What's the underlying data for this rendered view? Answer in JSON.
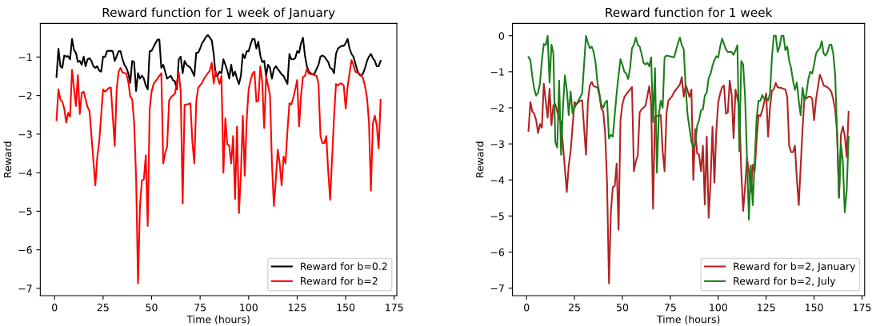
{
  "chart_data": [
    {
      "type": "line",
      "title": "Reward function for 1 week of January",
      "xlabel": "Time (hours)",
      "ylabel": "Reward",
      "xlim": [
        -7.35,
        176.35
      ],
      "ylim": [
        -7.19,
        -0.13
      ],
      "xticks": [
        0,
        25,
        50,
        75,
        100,
        125,
        150,
        175
      ],
      "yticks": [
        -7,
        -6,
        -5,
        -4,
        -3,
        -2,
        -1
      ],
      "legend": "bottom right",
      "grid": false,
      "series": [
        {
          "name": "Reward for b=0.2",
          "color": "#000000",
          "x": [
            1,
            2,
            3,
            4,
            5,
            6,
            7,
            8,
            9,
            10,
            11,
            12,
            13,
            14,
            15,
            16,
            17,
            18,
            19,
            20,
            21,
            22,
            23,
            24,
            25,
            26,
            27,
            28,
            29,
            30,
            31,
            32,
            33,
            34,
            35,
            36,
            37,
            38,
            39,
            40,
            41,
            42,
            43,
            44,
            45,
            46,
            47,
            48,
            49,
            50,
            51,
            52,
            53,
            54,
            55,
            56,
            57,
            58,
            59,
            60,
            61,
            62,
            63,
            64,
            65,
            66,
            67,
            68,
            69,
            70,
            71,
            72,
            73,
            74,
            75,
            76,
            77,
            78,
            79,
            80,
            81,
            82,
            83,
            84,
            85,
            86,
            87,
            88,
            89,
            90,
            91,
            92,
            93,
            94,
            95,
            96,
            97,
            98,
            99,
            100,
            101,
            102,
            103,
            104,
            105,
            106,
            107,
            108,
            109,
            110,
            111,
            112,
            113,
            114,
            115,
            116,
            117,
            118,
            119,
            120,
            121,
            122,
            123,
            124,
            125,
            126,
            127,
            128,
            129,
            130,
            131,
            132,
            133,
            134,
            135,
            136,
            137,
            138,
            139,
            140,
            141,
            142,
            143,
            144,
            145,
            146,
            147,
            148,
            149,
            150,
            151,
            152,
            153,
            154,
            155,
            156,
            157,
            158,
            159,
            160,
            161,
            162,
            163,
            164,
            165,
            166,
            167,
            168
          ],
          "values": [
            -1.52,
            -0.78,
            -1.24,
            -1.28,
            -0.96,
            -0.99,
            -0.98,
            -1.06,
            -0.53,
            -0.82,
            -0.89,
            -1.13,
            -1.1,
            -1.2,
            -0.99,
            -1.24,
            -1.06,
            -1.03,
            -1.1,
            -1.24,
            -1.28,
            -1.24,
            -1.35,
            -1.38,
            -0.99,
            -1.0,
            -0.85,
            -0.84,
            -0.84,
            -0.85,
            -1.1,
            -0.98,
            -0.85,
            -0.85,
            -1.06,
            -1.2,
            -1.28,
            -1.42,
            -1.67,
            -1.1,
            -1.13,
            -1.88,
            -1.42,
            -1.56,
            -1.48,
            -1.56,
            -1.74,
            -1.84,
            -0.85,
            -0.84,
            -0.74,
            -0.64,
            -0.55,
            -0.55,
            -1.28,
            -1.2,
            -1.38,
            -1.56,
            -1.52,
            -1.49,
            -1.6,
            -1.63,
            -1.84,
            -1.06,
            -0.99,
            -1.42,
            -1.1,
            -1.2,
            -1.24,
            -1.28,
            -1.38,
            -1.49,
            -0.89,
            -0.89,
            -0.78,
            -0.64,
            -0.57,
            -0.48,
            -0.43,
            -0.5,
            -0.57,
            -0.92,
            -1.49,
            -1.49,
            -1.38,
            -1.42,
            -1.06,
            -1.2,
            -1.35,
            -1.56,
            -1.2,
            -1.49,
            -1.38,
            -1.56,
            -1.7,
            -1.49,
            -0.92,
            -1.03,
            -0.85,
            -0.85,
            -0.67,
            -0.53,
            -0.53,
            -0.78,
            -0.6,
            -0.96,
            -1.13,
            -1.1,
            -1.49,
            -1.2,
            -1.28,
            -1.56,
            -1.31,
            -1.24,
            -1.31,
            -1.38,
            -1.45,
            -1.49,
            -1.6,
            -1.7,
            -0.92,
            -1.06,
            -1.06,
            -1.03,
            -0.85,
            -0.89,
            -0.64,
            -0.5,
            -0.96,
            -1.24,
            -1.38,
            -1.42,
            -1.45,
            -1.42,
            -1.31,
            -1.2,
            -0.99,
            -0.96,
            -0.99,
            -1.06,
            -1.13,
            -1.28,
            -1.31,
            -1.42,
            -0.92,
            -0.78,
            -0.74,
            -0.71,
            -0.71,
            -0.64,
            -0.53,
            -0.78,
            -0.92,
            -0.99,
            -1.17,
            -1.35,
            -1.45,
            -1.49,
            -1.42,
            -1.28,
            -1.1,
            -0.99,
            -0.92,
            -1.03,
            -1.1,
            -1.24,
            -1.24,
            -1.1
          ]
        },
        {
          "name": "Reward for b=2",
          "color": "#ff0000",
          "x": [
            1,
            2,
            3,
            4,
            5,
            6,
            7,
            8,
            9,
            11,
            12,
            13,
            14,
            15,
            17,
            18,
            21,
            22,
            23,
            25,
            26,
            28,
            29,
            31,
            32,
            33,
            34,
            35,
            37,
            38,
            39,
            40,
            41,
            42,
            43,
            44,
            45,
            46,
            47,
            48,
            49,
            50,
            51,
            53,
            55,
            56,
            57,
            58,
            59,
            60,
            62,
            64,
            65,
            66,
            67,
            69,
            70,
            71,
            72,
            73,
            74,
            76,
            77,
            78,
            79,
            80,
            81,
            82,
            83,
            84,
            85,
            86,
            87,
            88,
            89,
            90,
            91,
            92,
            93,
            94,
            95,
            96,
            97,
            98,
            99,
            100,
            101,
            102,
            103,
            104,
            105,
            106,
            107,
            108,
            109,
            110,
            111,
            112,
            113,
            114,
            115,
            116,
            117,
            118,
            119,
            120,
            121,
            122,
            123,
            124,
            125,
            126,
            127,
            128,
            129,
            130,
            131,
            133,
            135,
            136,
            137,
            138,
            139,
            140,
            141,
            142,
            143,
            144,
            145,
            146,
            147,
            148,
            149,
            150,
            151,
            152,
            153,
            154,
            155,
            157,
            158,
            159,
            160,
            161,
            162,
            163,
            164,
            165,
            166,
            167,
            168
          ],
          "values": [
            -2.64,
            -1.84,
            -2.1,
            -2.16,
            -2.34,
            -2.7,
            -2.45,
            -2.55,
            -1.33,
            -2.27,
            -1.47,
            -2.48,
            -1.93,
            -1.9,
            -2.3,
            -2.4,
            -4.33,
            -3.6,
            -3.2,
            -1.84,
            -1.9,
            -1.8,
            -1.79,
            -3.3,
            -1.84,
            -1.38,
            -1.28,
            -1.4,
            -1.43,
            -1.65,
            -2.02,
            -2.1,
            -2.7,
            -4.1,
            -6.87,
            -4.87,
            -4.2,
            -4.17,
            -3.55,
            -5.38,
            -2.34,
            -1.9,
            -1.7,
            -1.56,
            -1.42,
            -3.76,
            -3.48,
            -3.33,
            -2.13,
            -2.04,
            -1.95,
            -1.4,
            -1.9,
            -4.8,
            -2.24,
            -2.22,
            -2.2,
            -3.2,
            -3.76,
            -2.16,
            -1.8,
            -1.67,
            -1.56,
            -1.49,
            -1.42,
            -1.35,
            -1.15,
            -1.69,
            -1.36,
            -1.52,
            -1.7,
            -1.49,
            -4.0,
            -2.59,
            -3.26,
            -3.3,
            -3.76,
            -3.05,
            -4.68,
            -2.8,
            -5.05,
            -4.04,
            -2.52,
            -4.08,
            -2.62,
            -1.84,
            -1.6,
            -1.43,
            -1.38,
            -2.16,
            -2.13,
            -1.24,
            -1.65,
            -2.84,
            -1.49,
            -1.74,
            -1.99,
            -3.76,
            -4.86,
            -4.18,
            -3.4,
            -3.76,
            -4.33,
            -3.58,
            -3.76,
            -2.91,
            -2.2,
            -2.23,
            -2.06,
            -1.84,
            -1.6,
            -2.8,
            -1.99,
            -1.52,
            -1.49,
            -1.31,
            -1.43,
            -1.45,
            -1.49,
            -1.7,
            -3.05,
            -3.23,
            -3.23,
            -3.05,
            -3.97,
            -4.7,
            -3.62,
            -2.55,
            -1.7,
            -1.74,
            -1.69,
            -1.69,
            -1.74,
            -2.34,
            -1.77,
            -1.42,
            -1.08,
            -1.21,
            -1.38,
            -1.43,
            -1.48,
            -1.56,
            -1.77,
            -2.06,
            -2.7,
            -4.47,
            -2.73,
            -2.52,
            -2.77,
            -3.37,
            -2.11
          ]
        }
      ]
    },
    {
      "type": "line",
      "title": "Reward function for 1 week",
      "xlabel": "Time (hours)",
      "ylabel": "Reward",
      "xlim": [
        -7.35,
        176.35
      ],
      "ylim": [
        -7.21,
        0.34
      ],
      "xticks": [
        0,
        25,
        50,
        75,
        100,
        125,
        150,
        175
      ],
      "yticks": [
        -7,
        -6,
        -5,
        -4,
        -3,
        -2,
        -1,
        0
      ],
      "legend": "bottom right",
      "grid": false,
      "series": [
        {
          "name": "Reward for b=2, January",
          "color": "#b22222",
          "x": [
            1,
            2,
            3,
            4,
            5,
            6,
            7,
            8,
            9,
            11,
            12,
            13,
            14,
            15,
            17,
            18,
            21,
            22,
            23,
            25,
            26,
            28,
            29,
            31,
            32,
            33,
            34,
            35,
            37,
            38,
            39,
            40,
            41,
            42,
            43,
            44,
            45,
            46,
            47,
            48,
            49,
            50,
            51,
            53,
            55,
            56,
            57,
            58,
            59,
            60,
            62,
            64,
            65,
            66,
            67,
            69,
            70,
            71,
            72,
            73,
            74,
            76,
            77,
            78,
            79,
            80,
            81,
            82,
            83,
            84,
            85,
            86,
            87,
            88,
            89,
            90,
            91,
            92,
            93,
            94,
            95,
            96,
            97,
            98,
            99,
            100,
            101,
            102,
            103,
            104,
            105,
            106,
            107,
            108,
            109,
            110,
            111,
            112,
            113,
            114,
            115,
            116,
            117,
            118,
            119,
            120,
            121,
            122,
            123,
            124,
            125,
            126,
            127,
            128,
            129,
            130,
            131,
            133,
            135,
            136,
            137,
            138,
            139,
            140,
            141,
            142,
            143,
            144,
            145,
            146,
            147,
            148,
            149,
            150,
            151,
            152,
            153,
            154,
            155,
            157,
            158,
            159,
            160,
            161,
            162,
            163,
            164,
            165,
            166,
            167,
            168
          ],
          "values": [
            -2.64,
            -1.84,
            -2.1,
            -2.16,
            -2.34,
            -2.7,
            -2.45,
            -2.55,
            -1.33,
            -2.27,
            -1.47,
            -2.48,
            -1.93,
            -1.9,
            -2.3,
            -2.4,
            -4.33,
            -3.6,
            -3.2,
            -1.84,
            -1.9,
            -1.8,
            -1.79,
            -3.3,
            -1.84,
            -1.38,
            -1.28,
            -1.4,
            -1.43,
            -1.65,
            -2.02,
            -2.1,
            -2.7,
            -4.1,
            -6.87,
            -4.87,
            -4.2,
            -4.17,
            -3.55,
            -5.38,
            -2.34,
            -1.9,
            -1.7,
            -1.56,
            -1.42,
            -3.76,
            -3.48,
            -3.33,
            -2.13,
            -2.04,
            -1.95,
            -1.4,
            -1.9,
            -4.8,
            -2.24,
            -2.22,
            -2.2,
            -3.2,
            -3.76,
            -2.16,
            -1.8,
            -1.67,
            -1.56,
            -1.49,
            -1.42,
            -1.35,
            -1.15,
            -1.69,
            -1.36,
            -1.52,
            -1.7,
            -1.49,
            -4.0,
            -2.59,
            -3.26,
            -3.3,
            -3.76,
            -3.05,
            -4.68,
            -2.8,
            -5.05,
            -4.04,
            -2.52,
            -4.08,
            -2.62,
            -1.84,
            -1.6,
            -1.43,
            -1.38,
            -2.16,
            -2.13,
            -1.24,
            -1.65,
            -2.84,
            -1.49,
            -1.74,
            -1.99,
            -3.76,
            -4.86,
            -4.18,
            -3.4,
            -3.76,
            -4.33,
            -3.58,
            -3.76,
            -2.91,
            -2.2,
            -2.23,
            -2.06,
            -1.84,
            -1.6,
            -2.8,
            -1.99,
            -1.52,
            -1.49,
            -1.31,
            -1.43,
            -1.45,
            -1.49,
            -1.7,
            -3.05,
            -3.23,
            -3.23,
            -3.05,
            -3.97,
            -4.7,
            -3.62,
            -2.55,
            -1.7,
            -1.74,
            -1.69,
            -1.69,
            -1.74,
            -2.34,
            -1.77,
            -1.42,
            -1.08,
            -1.21,
            -1.38,
            -1.43,
            -1.48,
            -1.56,
            -1.77,
            -2.06,
            -2.7,
            -4.47,
            -2.73,
            -2.52,
            -2.77,
            -3.37,
            -2.11
          ]
        },
        {
          "name": "Reward for b=2, July",
          "color": "#1a7f1a",
          "x": [
            1,
            2,
            3,
            4,
            5,
            6,
            7,
            8,
            9,
            10,
            11,
            12,
            13,
            14,
            15,
            16,
            17,
            18,
            19,
            20,
            21,
            22,
            23,
            24,
            25,
            26,
            27,
            28,
            29,
            31,
            32,
            33,
            34,
            35,
            36,
            37,
            38,
            39,
            40,
            41,
            42,
            43,
            44,
            45,
            46,
            47,
            48,
            49,
            50,
            51,
            52,
            53,
            54,
            55,
            56,
            57,
            58,
            59,
            60,
            61,
            62,
            63,
            64,
            65,
            66,
            67,
            68,
            69,
            70,
            71,
            72,
            73,
            77,
            78,
            79,
            80,
            81,
            82,
            83,
            84,
            85,
            86,
            87,
            88,
            89,
            90,
            91,
            92,
            93,
            94,
            95,
            96,
            97,
            98,
            99,
            100,
            101,
            102,
            103,
            104,
            105,
            106,
            107,
            108,
            109,
            110,
            111,
            112,
            113,
            114,
            115,
            116,
            117,
            118,
            119,
            120,
            121,
            122,
            123,
            124,
            125,
            126,
            127,
            128,
            129,
            130,
            131,
            132,
            133,
            134,
            135,
            136,
            137,
            138,
            139,
            140,
            141,
            142,
            143,
            144,
            145,
            146,
            147,
            148,
            149,
            150,
            151,
            152,
            153,
            154,
            155,
            156,
            157,
            158,
            159,
            160,
            161,
            162,
            163,
            164,
            165,
            166,
            167,
            168
          ],
          "values": [
            -0.59,
            -0.68,
            -1.13,
            -1.47,
            -1.66,
            -1.58,
            -1.32,
            -0.68,
            -0.23,
            -0.26,
            0,
            -1.3,
            -0.25,
            -0.5,
            -2.95,
            -3.1,
            -1.24,
            -3.3,
            -2.0,
            -1.1,
            -1.5,
            -2.2,
            -1.55,
            -2.15,
            -2.0,
            -1.9,
            -1.8,
            -1.7,
            -1.6,
            0,
            -0.2,
            -0.35,
            -0.3,
            -0.45,
            -0.75,
            -1.3,
            -1.6,
            -1.9,
            -2.0,
            -1.85,
            -1.8,
            -2.85,
            -2.75,
            -2.8,
            -2.2,
            -1.6,
            -1.1,
            -0.65,
            -0.8,
            -1.0,
            -1.05,
            -1.2,
            -0.9,
            -0.35,
            -0.25,
            -0.05,
            -0.25,
            -0.3,
            -0.5,
            -0.75,
            -0.8,
            -0.75,
            -0.85,
            -0.6,
            -2.4,
            -0.9,
            -3.8,
            -2.2,
            -1.8,
            -2.0,
            -0.6,
            -0.55,
            -0.6,
            -0.4,
            -0.2,
            -0.05,
            -0.26,
            -0.38,
            -1.43,
            -2.19,
            -2.56,
            -2.94,
            -3.09,
            -3.02,
            -2.49,
            -2.34,
            -2.07,
            -2.04,
            -1.66,
            -1.58,
            -1.17,
            -1.06,
            -0.83,
            -0.68,
            -0.57,
            -0.6,
            -0.3,
            -0.08,
            -0.23,
            -0.38,
            -0.45,
            -0.45,
            -0.45,
            -0.53,
            -0.41,
            -0.26,
            -3.2,
            -0.7,
            -0.8,
            -1.7,
            -3.4,
            -5.1,
            -3.6,
            -4.7,
            -3.5,
            -2.3,
            -1.8,
            -1.8,
            -1.65,
            -1.75,
            -1.7,
            -1.8,
            -1.6,
            -0.6,
            0,
            0,
            -0.45,
            -0.3,
            0,
            0,
            -0.4,
            -0.3,
            -0.7,
            -0.9,
            -1.25,
            -1.5,
            -1.3,
            -1.8,
            -2.2,
            -1.45,
            -1.8,
            -1.6,
            -1.2,
            -1.0,
            -1.05,
            -0.8,
            -0.5,
            -0.4,
            -0.35,
            -0.15,
            -0.5,
            -0.55,
            -0.45,
            -0.25,
            -0.25,
            -0.5,
            -1.1,
            -2.7,
            -4.5,
            -3.0,
            -3.5,
            -4.9,
            -4.3,
            -2.8
          ]
        }
      ]
    }
  ]
}
